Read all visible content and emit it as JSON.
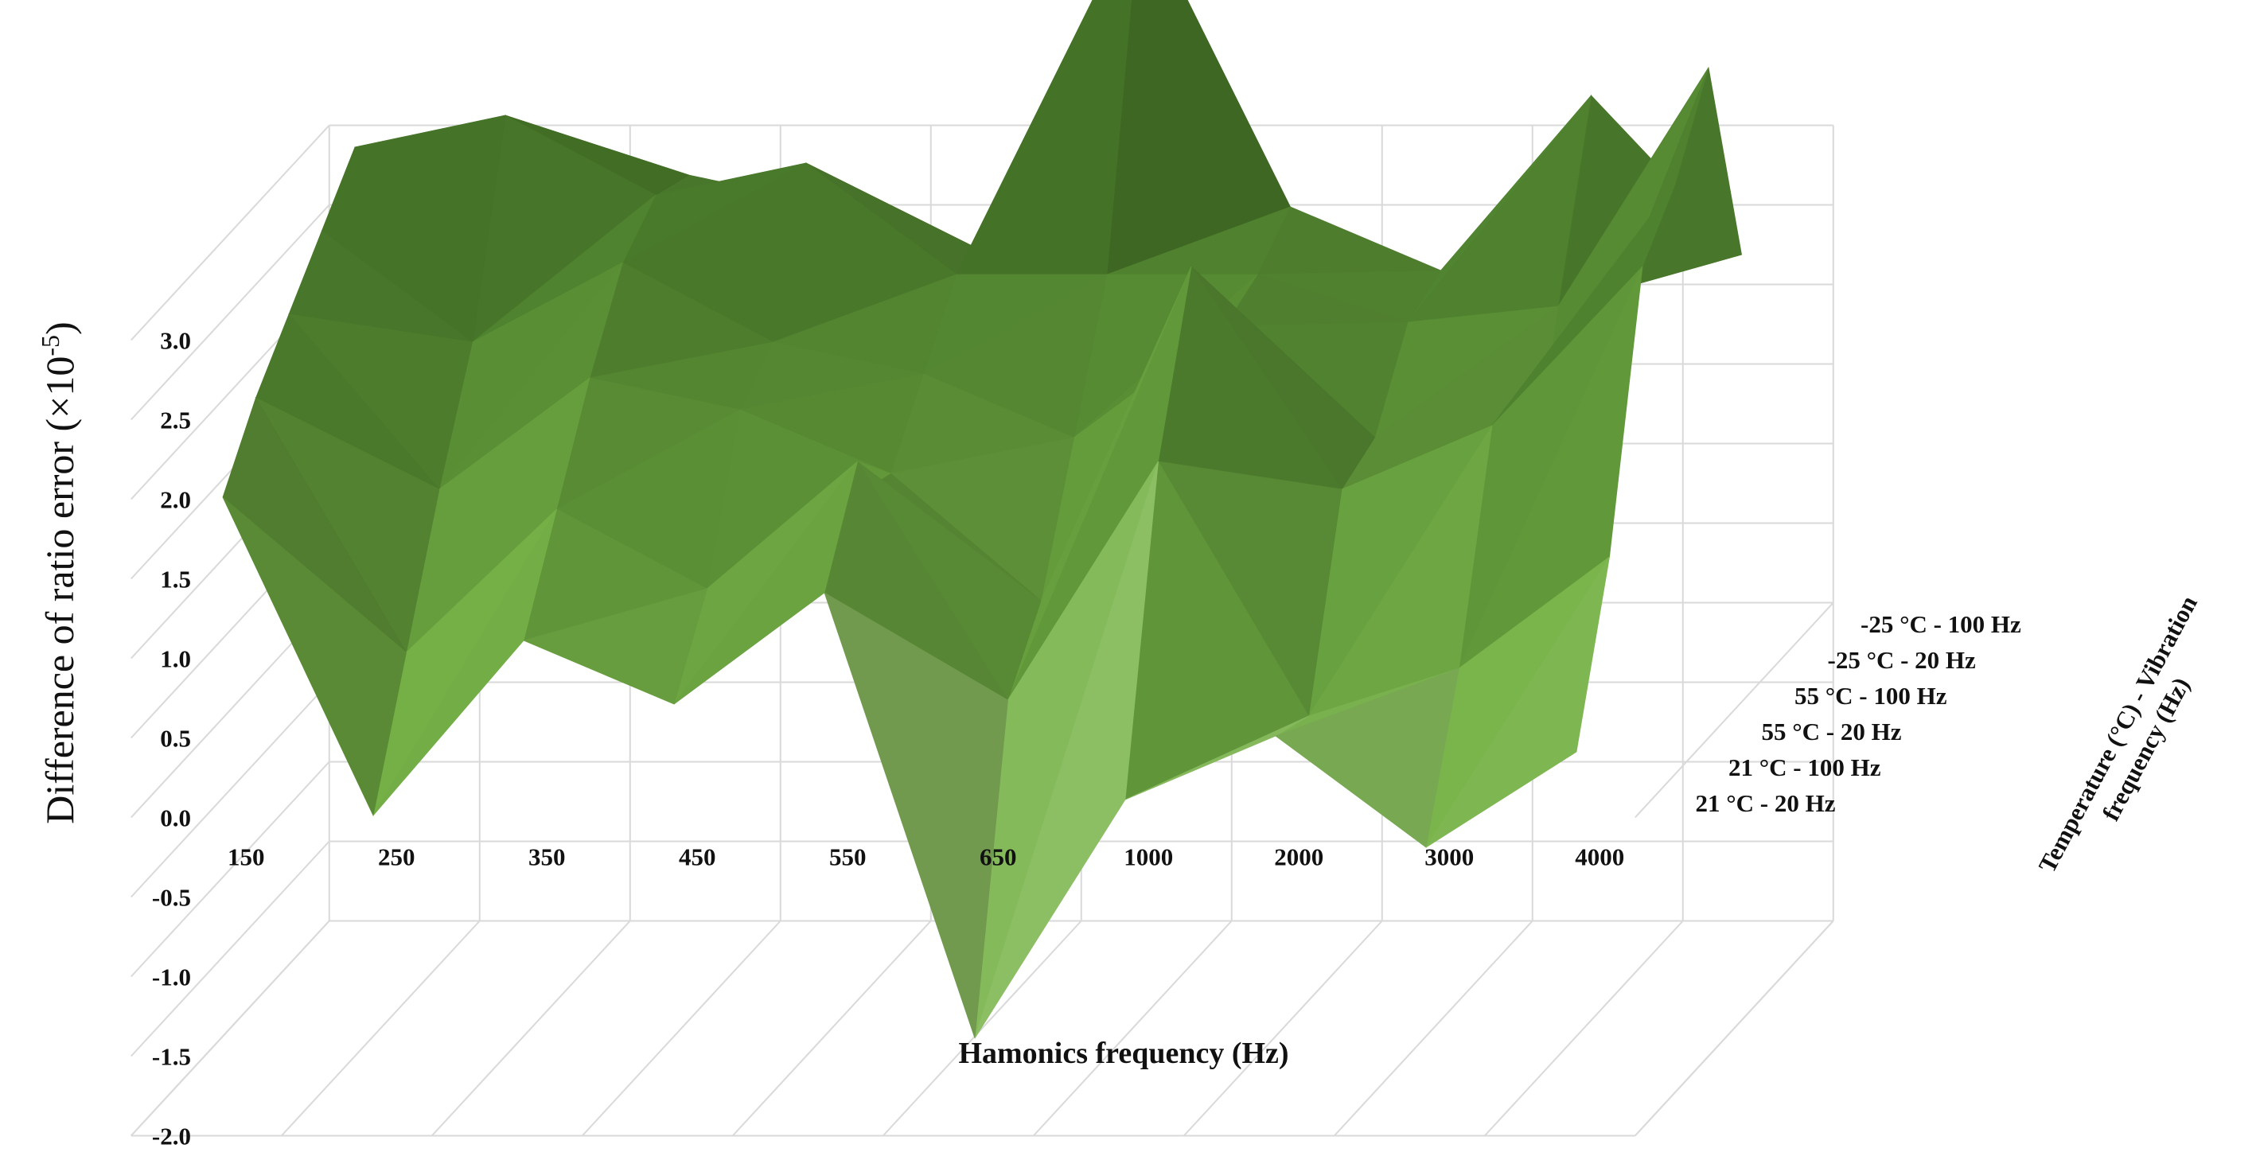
{
  "chart_data": {
    "type": "surface",
    "title": "",
    "xlabel": "Hamonics frequency (Hz)",
    "ylabel_prefix": "Difference of ratio error  (×10",
    "ylabel_exp": "-5",
    "ylabel_suffix": ")",
    "zlabel_line1": "Temperature (°C)  - Vibration",
    "zlabel_line2": "frequency (Hz)",
    "x_categories": [
      "150",
      "250",
      "350",
      "450",
      "550",
      "650",
      "1000",
      "2000",
      "3000",
      "4000"
    ],
    "z_categories": [
      "21 °C - 20 Hz",
      "21 °C - 100 Hz",
      "55 °C - 20 Hz",
      "55 °C - 100 Hz",
      "-25 °C - 20 Hz",
      "-25 °C - 100 Hz"
    ],
    "y_ticks": [
      "3.0",
      "2.5",
      "2.0",
      "1.5",
      "1.0",
      "0.5",
      "0.0",
      "-0.5",
      "-1.0",
      "-1.5",
      "-2.0"
    ],
    "ylim": [
      -2.0,
      3.0
    ],
    "grid": true,
    "legend": "none",
    "colors": {
      "surface_low": "#eefed8",
      "surface_mid": "#7ab84a",
      "surface_high": "#3f6e24",
      "surface_dark": "#1f3510",
      "grid": "#d9d9d9"
    },
    "series": [
      {
        "name": "21 °C - 20 Hz",
        "values": [
          1.9,
          -0.1,
          1.0,
          0.6,
          1.3,
          -1.5,
          0.0,
          0.4,
          -0.3,
          0.3
        ]
      },
      {
        "name": "21 °C - 100 Hz",
        "values": [
          2.3,
          0.7,
          1.6,
          1.1,
          1.9,
          0.4,
          1.9,
          0.3,
          0.6,
          1.3
        ]
      },
      {
        "name": "55 °C - 20 Hz",
        "values": [
          2.6,
          1.5,
          2.2,
          2.0,
          1.6,
          0.8,
          2.9,
          1.5,
          1.9,
          2.9
        ]
      },
      {
        "name": "55 °C - 100 Hz",
        "values": [
          2.9,
          2.2,
          2.7,
          2.2,
          2.0,
          1.6,
          2.3,
          1.6,
          1.0,
          3.2
        ]
      },
      {
        "name": "-25 °C - 20 Hz",
        "values": [
          3.2,
          3.4,
          2.9,
          3.1,
          2.4,
          2.4,
          2.4,
          2.1,
          2.2,
          3.7
        ]
      },
      {
        "name": "-25 °C - 100 Hz",
        "values": [
          2.8,
          3.1,
          2.8,
          2.6,
          2.3,
          4.5,
          2.6,
          2.2,
          3.3,
          2.3
        ]
      }
    ]
  }
}
